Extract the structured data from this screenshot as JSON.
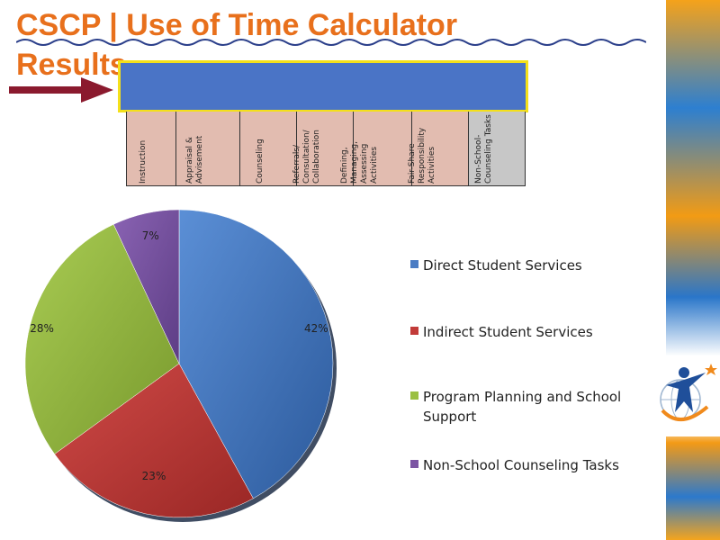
{
  "title": {
    "line1": "CSCP | Use of Time Calculator",
    "line2": "Results"
  },
  "colors": {
    "title": "#e8701c",
    "bar": "#4a74c6",
    "bar_border": "#f4e01a",
    "arrow": "#8b1a2e"
  },
  "categories_table": [
    {
      "label": "Instruction",
      "shade": "pink"
    },
    {
      "label": "Appraisal & Advisement",
      "shade": "pink"
    },
    {
      "label": "Counseling",
      "shade": "pink"
    },
    {
      "label": "Referrals/ Consultation/ Collaboration",
      "shade": "pink"
    },
    {
      "label": "Defining, Managing, Assessing Activities",
      "shade": "pink"
    },
    {
      "label": "Fair-Share Responsibility Activities",
      "shade": "pink"
    },
    {
      "label": "Non-School- Counseling Tasks",
      "shade": "gray"
    }
  ],
  "chart_data": {
    "type": "pie",
    "title": "",
    "slices": [
      {
        "name": "Direct Student Services",
        "value": 42,
        "label": "42%",
        "color": "#4a7cc4"
      },
      {
        "name": "Indirect Student Services",
        "value": 23,
        "label": "23%",
        "color": "#c23b39"
      },
      {
        "name": "Program Planning and School Support",
        "value": 28,
        "label": "28%",
        "color": "#9bc043"
      },
      {
        "name": "Non-School Counseling Tasks",
        "value": 7,
        "label": "7%",
        "color": "#7c55a3"
      }
    ],
    "legend_position": "right",
    "start_angle": "top, clockwise"
  },
  "logo": {
    "icon": "person-globe-star-icon"
  }
}
